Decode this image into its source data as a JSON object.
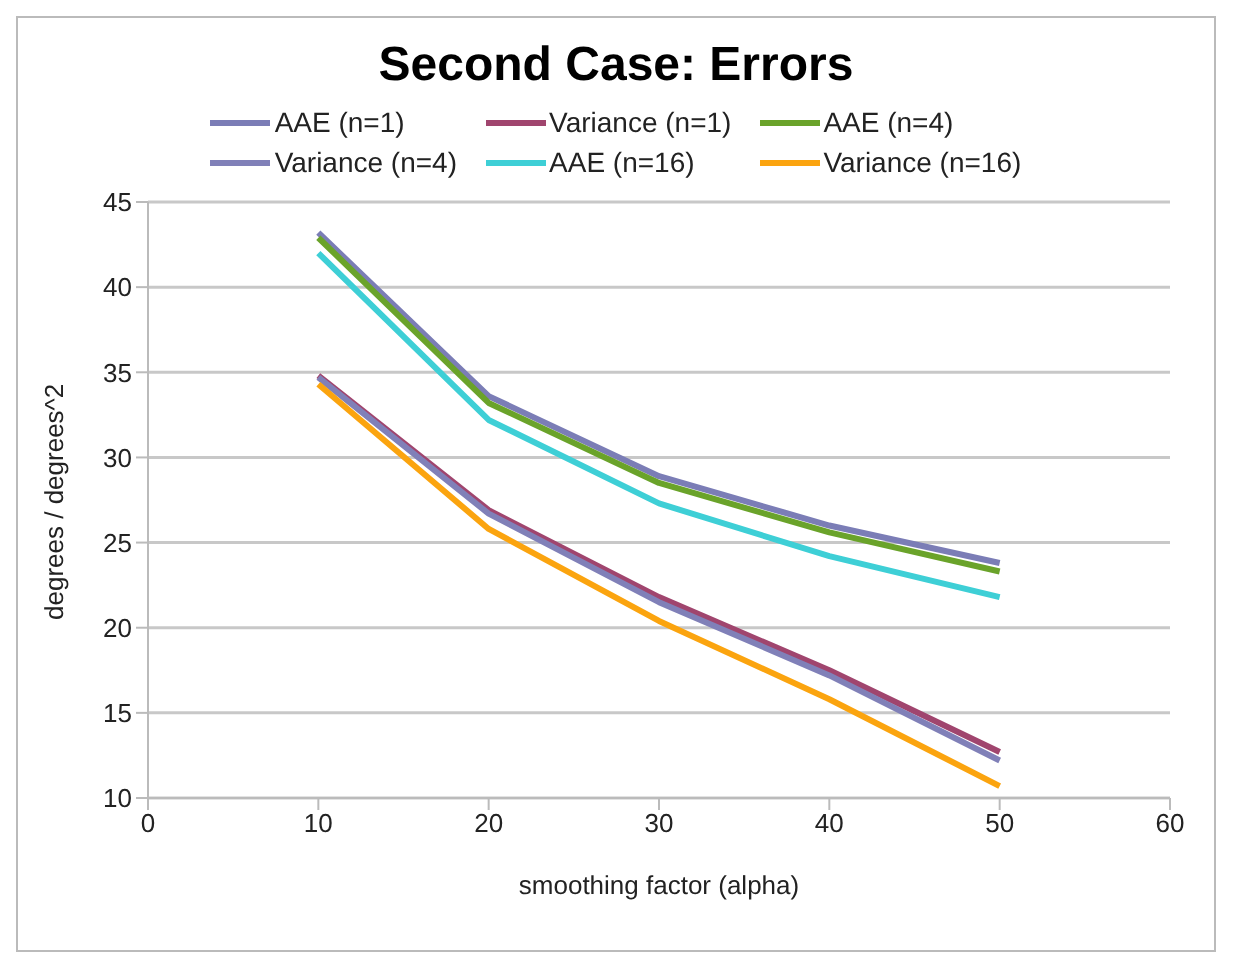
{
  "chart_data": {
    "type": "line",
    "title": "Second Case: Errors",
    "xlabel": "smoothing factor (alpha)",
    "ylabel": "degrees / degrees^2",
    "x": [
      10,
      20,
      30,
      40,
      50
    ],
    "series": [
      {
        "name": "AAE (n=1)",
        "color": "#7b7db6",
        "values": [
          43.2,
          33.6,
          28.9,
          26.0,
          23.8
        ]
      },
      {
        "name": "Variance (n=1)",
        "color": "#a0456e",
        "values": [
          34.8,
          26.9,
          21.8,
          17.5,
          12.7
        ]
      },
      {
        "name": "AAE (n=4)",
        "color": "#6aa32a",
        "values": [
          42.9,
          33.2,
          28.5,
          25.6,
          23.3
        ]
      },
      {
        "name": "Variance (n=4)",
        "color": "#8080b8",
        "values": [
          34.7,
          26.7,
          21.5,
          17.2,
          12.2
        ]
      },
      {
        "name": "AAE (n=16)",
        "color": "#3ecfd6",
        "values": [
          42.0,
          32.2,
          27.3,
          24.2,
          21.8
        ]
      },
      {
        "name": "Variance (n=16)",
        "color": "#fba40f",
        "values": [
          34.3,
          25.8,
          20.4,
          15.8,
          10.7
        ]
      }
    ],
    "xlim": [
      0,
      60
    ],
    "xticks": [
      0,
      10,
      20,
      30,
      40,
      50,
      60
    ],
    "ylim": [
      10,
      45
    ],
    "yticks": [
      10,
      15,
      20,
      25,
      30,
      35,
      40,
      45
    ],
    "grid": "y",
    "legend": "top",
    "marker": "none",
    "line_style": "solid"
  }
}
